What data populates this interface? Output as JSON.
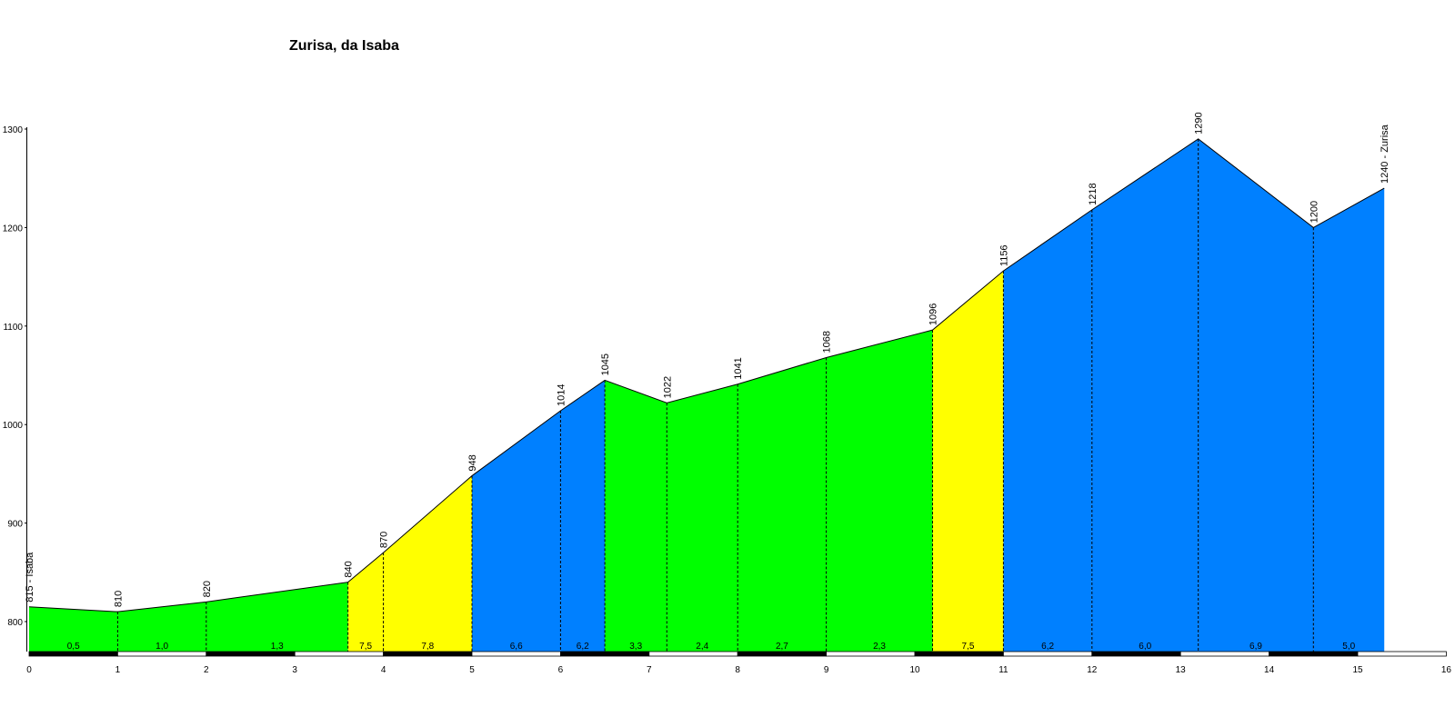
{
  "chart_data": {
    "type": "area",
    "title": "Zurisa, da Isaba",
    "xlabel": "",
    "ylabel": "",
    "xlim": [
      0,
      16
    ],
    "ylim": [
      770,
      1300
    ],
    "x_ticks": [
      0,
      1,
      2,
      3,
      4,
      5,
      6,
      7,
      8,
      9,
      10,
      11,
      12,
      13,
      14,
      15,
      16
    ],
    "y_ticks": [
      800,
      900,
      1000,
      1100,
      1200,
      1300
    ],
    "points": [
      {
        "x": 0.0,
        "elevation": 815,
        "label": "815 - Isaba"
      },
      {
        "x": 1.0,
        "elevation": 810,
        "label": "810"
      },
      {
        "x": 2.0,
        "elevation": 820,
        "label": "820"
      },
      {
        "x": 3.6,
        "elevation": 840,
        "label": "840"
      },
      {
        "x": 4.0,
        "elevation": 870,
        "label": "870"
      },
      {
        "x": 5.0,
        "elevation": 948,
        "label": "948"
      },
      {
        "x": 6.0,
        "elevation": 1014,
        "label": "1014"
      },
      {
        "x": 6.5,
        "elevation": 1045,
        "label": "1045"
      },
      {
        "x": 7.2,
        "elevation": 1022,
        "label": "1022"
      },
      {
        "x": 8.0,
        "elevation": 1041,
        "label": "1041"
      },
      {
        "x": 9.0,
        "elevation": 1068,
        "label": "1068"
      },
      {
        "x": 10.2,
        "elevation": 1096,
        "label": "1096"
      },
      {
        "x": 11.0,
        "elevation": 1156,
        "label": "1156"
      },
      {
        "x": 12.0,
        "elevation": 1218,
        "label": "1218"
      },
      {
        "x": 13.2,
        "elevation": 1290,
        "label": "1290"
      },
      {
        "x": 14.5,
        "elevation": 1200,
        "label": "1200"
      },
      {
        "x": 15.3,
        "elevation": 1240,
        "label": "1240 - Zurisa"
      }
    ],
    "segments": [
      {
        "from": 0.0,
        "to": 1.0,
        "gradient": "0,5",
        "color": "#00ff00"
      },
      {
        "from": 1.0,
        "to": 2.0,
        "gradient": "1,0",
        "color": "#00ff00"
      },
      {
        "from": 2.0,
        "to": 3.6,
        "gradient": "1,3",
        "color": "#00ff00"
      },
      {
        "from": 3.6,
        "to": 4.0,
        "gradient": "7,5",
        "color": "#ffff00"
      },
      {
        "from": 4.0,
        "to": 5.0,
        "gradient": "7,8",
        "color": "#ffff00"
      },
      {
        "from": 5.0,
        "to": 6.0,
        "gradient": "6,6",
        "color": "#0080ff"
      },
      {
        "from": 6.0,
        "to": 6.5,
        "gradient": "6,2",
        "color": "#0080ff"
      },
      {
        "from": 6.5,
        "to": 7.2,
        "gradient": "3,3",
        "color": "#00ff00"
      },
      {
        "from": 7.2,
        "to": 8.0,
        "gradient": "2,4",
        "color": "#00ff00"
      },
      {
        "from": 8.0,
        "to": 9.0,
        "gradient": "2,7",
        "color": "#00ff00"
      },
      {
        "from": 9.0,
        "to": 10.2,
        "gradient": "2,3",
        "color": "#00ff00"
      },
      {
        "from": 10.2,
        "to": 11.0,
        "gradient": "7,5",
        "color": "#ffff00"
      },
      {
        "from": 11.0,
        "to": 12.0,
        "gradient": "6,2",
        "color": "#0080ff"
      },
      {
        "from": 12.0,
        "to": 13.2,
        "gradient": "6,0",
        "color": "#0080ff"
      },
      {
        "from": 13.2,
        "to": 14.5,
        "gradient": "6,9",
        "color": "#0080ff"
      },
      {
        "from": 14.5,
        "to": 15.3,
        "gradient": "5,0",
        "color": "#0080ff"
      }
    ],
    "grid": false,
    "legend": "none"
  }
}
